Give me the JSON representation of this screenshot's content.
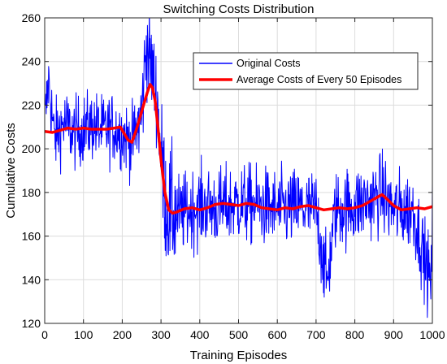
{
  "chart_data": {
    "type": "line",
    "title": "Switching Costs Distribution",
    "xlabel": "Training Episodes",
    "ylabel": "Cumulative Costs",
    "xlim": [
      0,
      1000
    ],
    "ylim": [
      120,
      260
    ],
    "xticks": [
      0,
      100,
      200,
      300,
      400,
      500,
      600,
      700,
      800,
      900,
      1000
    ],
    "yticks": [
      120,
      140,
      160,
      180,
      200,
      220,
      240,
      260
    ],
    "grid": true,
    "legend_position": "top-right",
    "series": [
      {
        "name": "Original Costs",
        "color": "#0000ff",
        "style": "noisy-line",
        "approx_points": [
          [
            0,
            210
          ],
          [
            10,
            232
          ],
          [
            25,
            205
          ],
          [
            50,
            212
          ],
          [
            75,
            207
          ],
          [
            100,
            209
          ],
          [
            125,
            211
          ],
          [
            150,
            208
          ],
          [
            175,
            210
          ],
          [
            200,
            207
          ],
          [
            225,
            203
          ],
          [
            250,
            215
          ],
          [
            262,
            248
          ],
          [
            275,
            238
          ],
          [
            290,
            222
          ],
          [
            300,
            196
          ],
          [
            315,
            172
          ],
          [
            350,
            170
          ],
          [
            400,
            174
          ],
          [
            450,
            173
          ],
          [
            500,
            175
          ],
          [
            550,
            174
          ],
          [
            600,
            172
          ],
          [
            650,
            173
          ],
          [
            700,
            172
          ],
          [
            728,
            138
          ],
          [
            750,
            172
          ],
          [
            800,
            174
          ],
          [
            850,
            177
          ],
          [
            868,
            180
          ],
          [
            900,
            172
          ],
          [
            950,
            172
          ],
          [
            997,
            138
          ],
          [
            1000,
            172
          ]
        ]
      },
      {
        "name": "Average Costs of Every 50 Episodes",
        "color": "#ff0000",
        "style": "thick-line",
        "points": [
          [
            0,
            208
          ],
          [
            20,
            207.5
          ],
          [
            40,
            208.5
          ],
          [
            60,
            209.5
          ],
          [
            80,
            209
          ],
          [
            100,
            209.5
          ],
          [
            120,
            209
          ],
          [
            140,
            209
          ],
          [
            160,
            209
          ],
          [
            180,
            209.5
          ],
          [
            195,
            210
          ],
          [
            205,
            207
          ],
          [
            215,
            204
          ],
          [
            225,
            203
          ],
          [
            235,
            208
          ],
          [
            245,
            214
          ],
          [
            255,
            220
          ],
          [
            265,
            226
          ],
          [
            272,
            229.5
          ],
          [
            278,
            228
          ],
          [
            285,
            222
          ],
          [
            292,
            210
          ],
          [
            300,
            195
          ],
          [
            310,
            180
          ],
          [
            320,
            172
          ],
          [
            330,
            170.5
          ],
          [
            340,
            171
          ],
          [
            360,
            172.5
          ],
          [
            380,
            173
          ],
          [
            400,
            172
          ],
          [
            420,
            173
          ],
          [
            440,
            174.5
          ],
          [
            460,
            175
          ],
          [
            480,
            174.5
          ],
          [
            500,
            174
          ],
          [
            520,
            175
          ],
          [
            540,
            174.5
          ],
          [
            560,
            173
          ],
          [
            580,
            172.5
          ],
          [
            600,
            172
          ],
          [
            620,
            173
          ],
          [
            640,
            172.5
          ],
          [
            660,
            173.5
          ],
          [
            680,
            174
          ],
          [
            700,
            173
          ],
          [
            720,
            172
          ],
          [
            740,
            172.5
          ],
          [
            760,
            173
          ],
          [
            780,
            172.5
          ],
          [
            800,
            173
          ],
          [
            820,
            174
          ],
          [
            840,
            176
          ],
          [
            860,
            178
          ],
          [
            870,
            179
          ],
          [
            880,
            177.5
          ],
          [
            900,
            174
          ],
          [
            920,
            172
          ],
          [
            940,
            172.5
          ],
          [
            960,
            173
          ],
          [
            980,
            172.5
          ],
          [
            1000,
            173.5
          ]
        ]
      }
    ]
  }
}
